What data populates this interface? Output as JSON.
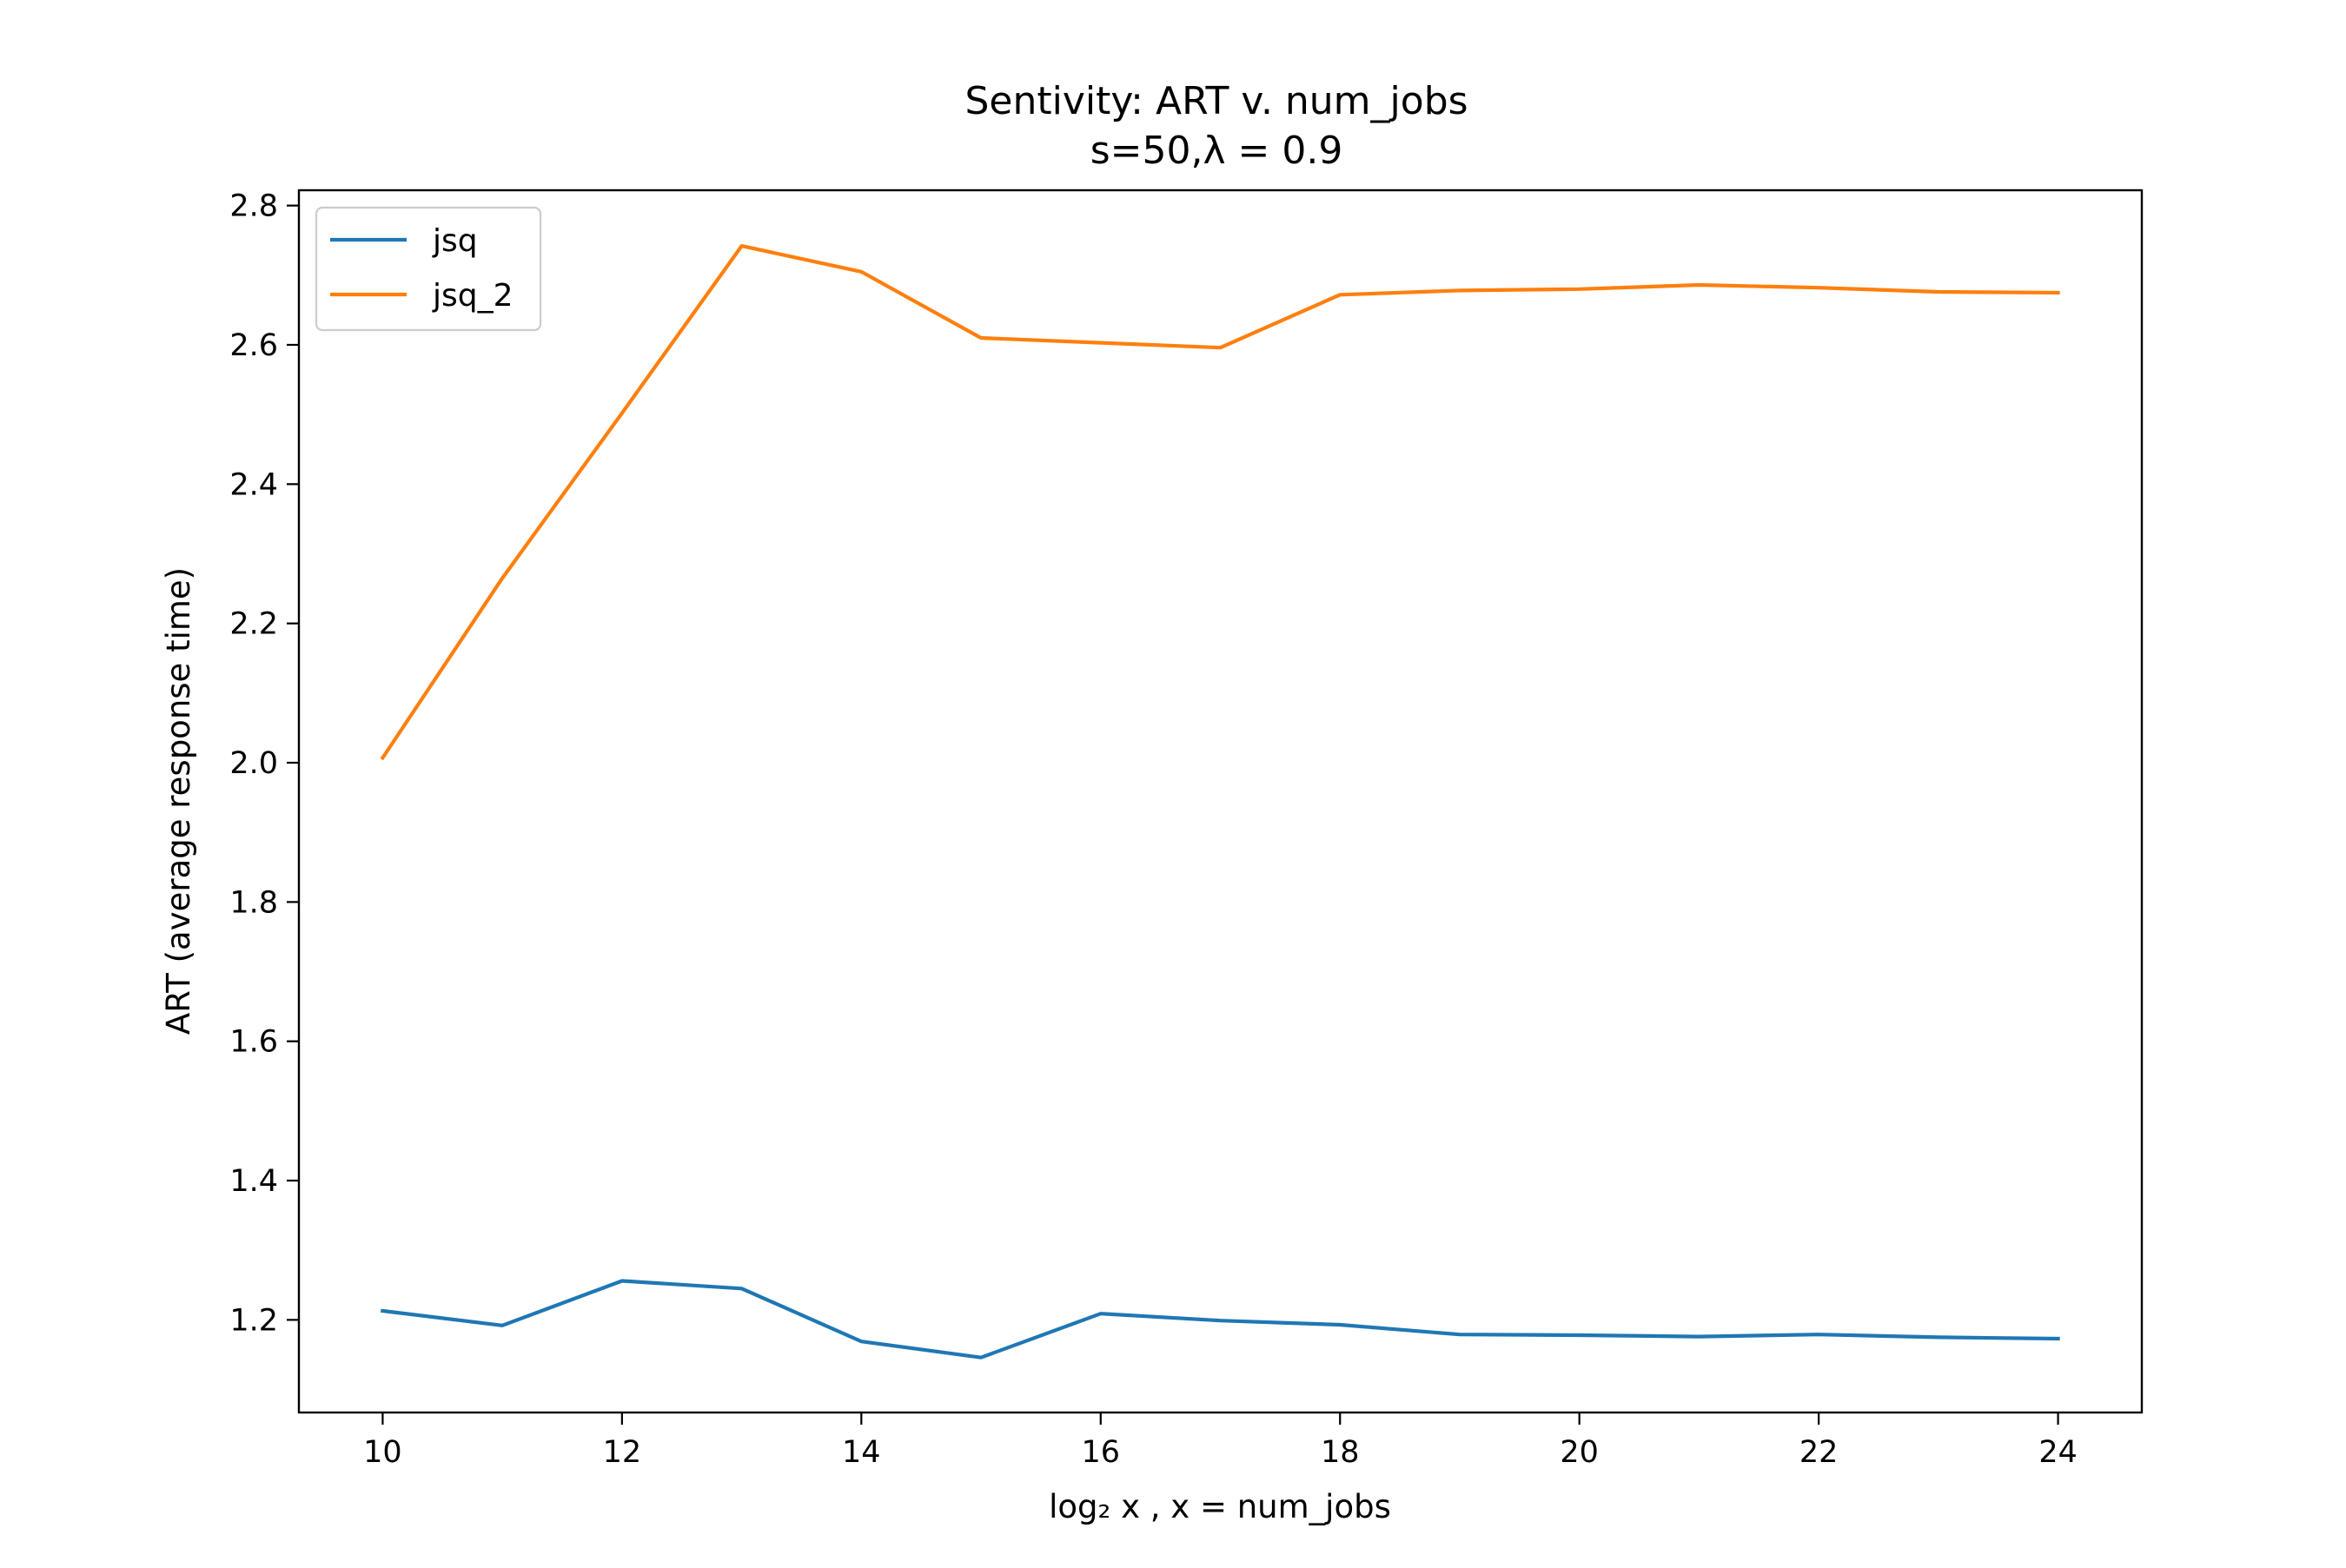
{
  "chart_data": {
    "type": "line",
    "title": "Sentivity: ART v. num_jobs",
    "subtitle": "s=50,λ = 0.9",
    "xlabel": "log₂ x , x = num_jobs",
    "ylabel": "ART (average response time)",
    "x": [
      10,
      11,
      12,
      13,
      14,
      15,
      16,
      17,
      18,
      19,
      20,
      21,
      22,
      23,
      24
    ],
    "xlim": [
      9.3,
      24.7
    ],
    "ylim": [
      1.067,
      2.822
    ],
    "xticks": [
      10,
      12,
      14,
      16,
      18,
      20,
      22,
      24
    ],
    "yticks": [
      1.2,
      1.4,
      1.6,
      1.8,
      2.0,
      2.2,
      2.4,
      2.6,
      2.8
    ],
    "grid": false,
    "legend_position": "upper-left",
    "series": [
      {
        "name": "jsq",
        "color": "#1f77b4",
        "values": [
          1.213,
          1.192,
          1.256,
          1.245,
          1.169,
          1.146,
          1.209,
          1.199,
          1.193,
          1.179,
          1.178,
          1.176,
          1.179,
          1.175,
          1.173
        ]
      },
      {
        "name": "jsq_2",
        "color": "#ff7f0e",
        "values": [
          2.007,
          2.265,
          2.502,
          2.742,
          2.705,
          2.61,
          2.603,
          2.596,
          2.672,
          2.678,
          2.68,
          2.686,
          2.682,
          2.676,
          2.675
        ]
      }
    ]
  }
}
